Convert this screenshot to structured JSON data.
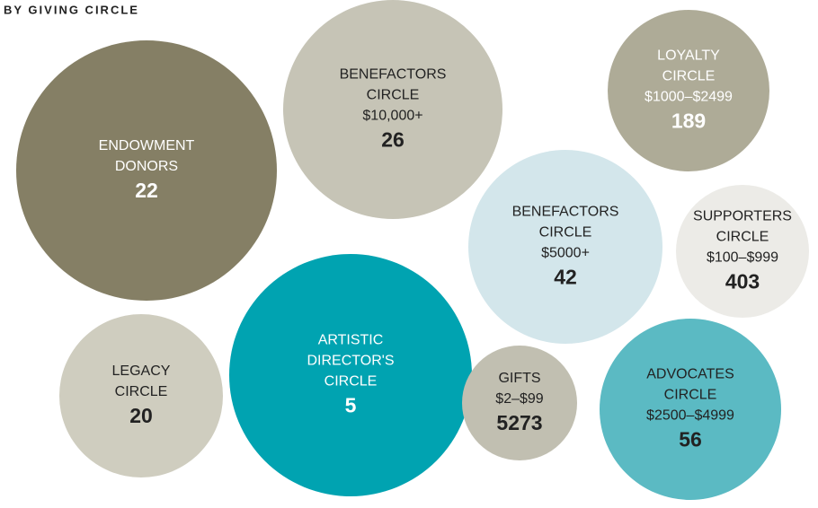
{
  "title": "BY GIVING CIRCLE",
  "circles": [
    {
      "lines": [
        "ENDOWMENT",
        "DONORS"
      ],
      "count": 22,
      "color": "#857f65"
    },
    {
      "lines": [
        "BENEFACTORS",
        "CIRCLE",
        "$10,000+"
      ],
      "count": 26,
      "color": "#c6c4b6"
    },
    {
      "lines": [
        "LOYALTY",
        "CIRCLE",
        "$1000–$2499"
      ],
      "count": 189,
      "color": "#aeab97"
    },
    {
      "lines": [
        "BENEFACTORS",
        "CIRCLE",
        "$5000+"
      ],
      "count": 42,
      "color": "#d3e6eb"
    },
    {
      "lines": [
        "SUPPORTERS",
        "CIRCLE",
        "$100–$999"
      ],
      "count": 403,
      "color": "#ecebe7"
    },
    {
      "lines": [
        "ARTISTIC",
        "DIRECTOR'S",
        "CIRCLE"
      ],
      "count": 5,
      "color": "#00a3b1"
    },
    {
      "lines": [
        "LEGACY",
        "CIRCLE"
      ],
      "count": 20,
      "color": "#cfcdbf"
    },
    {
      "lines": [
        "GIFTS",
        "$2–$99"
      ],
      "count": 5273,
      "color": "#c1bfb1"
    },
    {
      "lines": [
        "ADVOCATES",
        "CIRCLE",
        "$2500–$4999"
      ],
      "count": 56,
      "color": "#5bbac3"
    }
  ]
}
